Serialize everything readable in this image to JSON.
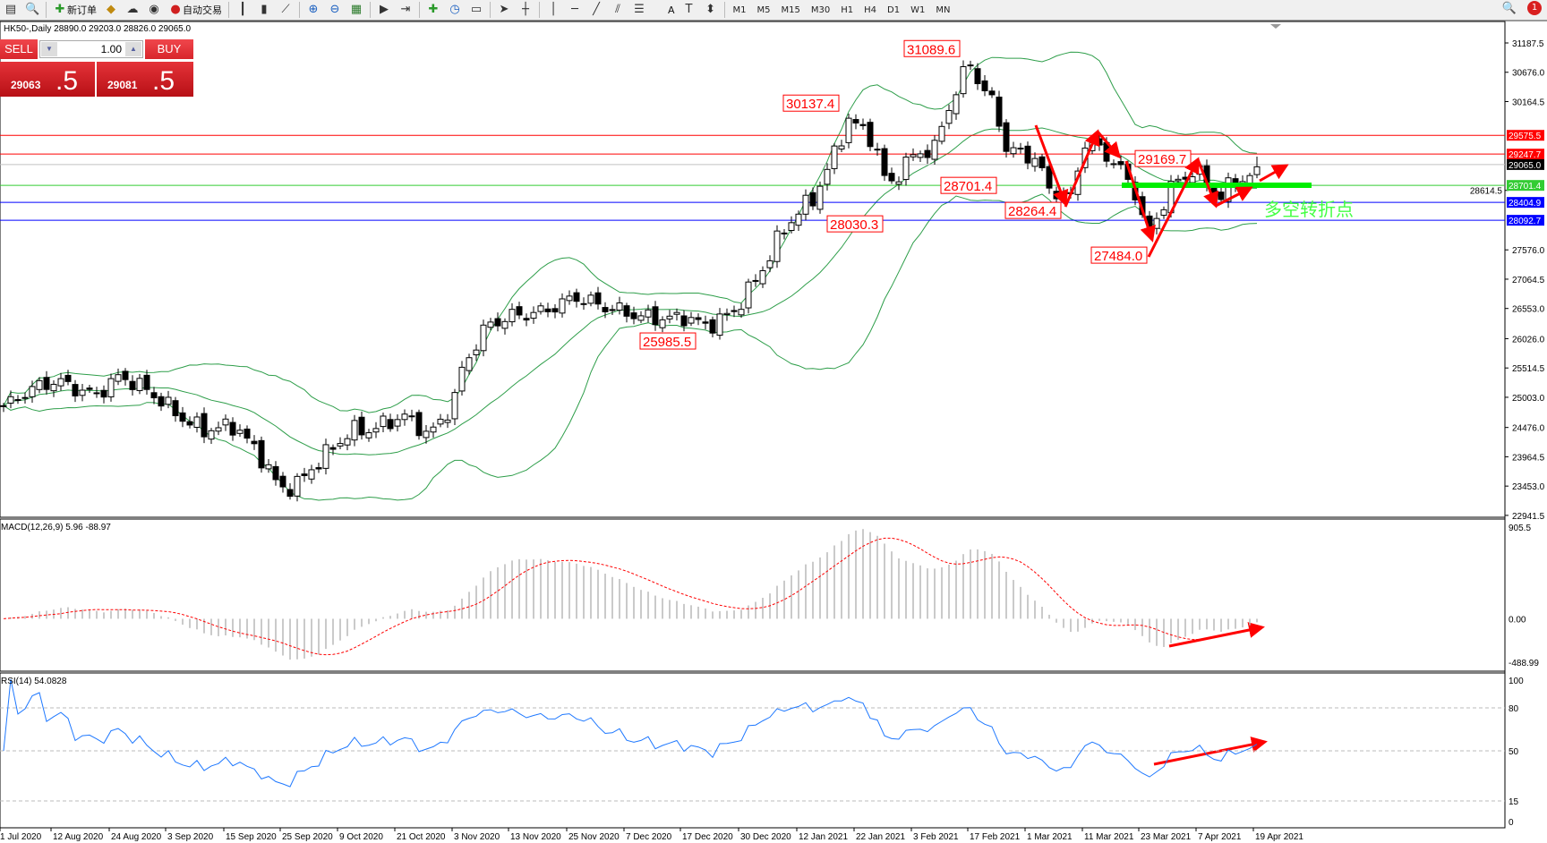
{
  "toolbar": {
    "items": [
      {
        "icon": "new-chart-icon",
        "label": ""
      },
      {
        "icon": "template-icon",
        "label": ""
      },
      {
        "icon": "new-order-icon",
        "label": "新订单"
      },
      {
        "icon": "expert-icon",
        "label": ""
      },
      {
        "icon": "history-icon",
        "label": ""
      },
      {
        "icon": "signal-icon",
        "label": ""
      },
      {
        "icon": "auto-trading-icon",
        "label": "自动交易"
      },
      {
        "icon": "bar-chart-icon",
        "label": ""
      },
      {
        "icon": "candlestick-icon",
        "label": ""
      },
      {
        "icon": "line-chart-icon",
        "label": ""
      },
      {
        "icon": "zoom-in-icon",
        "label": ""
      },
      {
        "icon": "zoom-out-icon",
        "label": ""
      },
      {
        "icon": "tile-windows-icon",
        "label": ""
      },
      {
        "icon": "autoscroll-icon",
        "label": ""
      },
      {
        "icon": "chart-shift-icon",
        "label": ""
      },
      {
        "icon": "indicators-icon",
        "label": ""
      },
      {
        "icon": "periods-icon",
        "label": ""
      },
      {
        "icon": "templates-icon",
        "label": ""
      },
      {
        "icon": "cursor-icon",
        "label": ""
      },
      {
        "icon": "crosshair-icon",
        "label": ""
      },
      {
        "icon": "vertical-line-icon",
        "label": ""
      },
      {
        "icon": "horizontal-line-icon",
        "label": ""
      },
      {
        "icon": "trendline-icon",
        "label": ""
      },
      {
        "icon": "equidistant-channel-icon",
        "label": ""
      },
      {
        "icon": "fibonacci-icon",
        "label": ""
      },
      {
        "icon": "text-icon",
        "label": "A"
      },
      {
        "icon": "text-label-icon",
        "label": ""
      },
      {
        "icon": "arrows-icon",
        "label": ""
      }
    ],
    "timeframes": [
      "M1",
      "M5",
      "M15",
      "M30",
      "H1",
      "H4",
      "D1",
      "W1",
      "MN"
    ],
    "notification_count": "1"
  },
  "chart_header": "HK50-,Daily  28890.0 29203.0 28826.0 29065.0",
  "trade_panel": {
    "sell_label": "SELL",
    "buy_label": "BUY",
    "volume": "1.00",
    "sell_price_main": "29063",
    "sell_price_frac": ".5",
    "buy_price_main": "29081",
    "buy_price_frac": ".5",
    "color": "#d8262c"
  },
  "chart_data": {
    "type": "candlestick",
    "symbol": "HK50-",
    "timeframe": "Daily",
    "ohlc_last": {
      "open": 28890.0,
      "high": 29203.0,
      "low": 28826.0,
      "close": 29065.0
    },
    "price_axis": {
      "min": 22941.5,
      "max": 31187.5,
      "ticks": [
        "31187.5",
        "30676.0",
        "30164.5",
        "28614.5",
        "27576.0",
        "27064.5",
        "26553.0",
        "26026.0",
        "25514.5",
        "25003.0",
        "24476.0",
        "23964.5",
        "23453.0",
        "22941.5"
      ]
    },
    "close_keypoints": [
      [
        "3 Aug 2020",
        24856
      ],
      [
        "7 Aug 2020",
        25115
      ],
      [
        "13 Aug 2020",
        25290
      ],
      [
        "21 Aug 2020",
        25030
      ],
      [
        "26 Aug 2020",
        25375
      ],
      [
        "31 Aug 2020",
        25115
      ],
      [
        "7 Sep 2020",
        24600
      ],
      [
        "11 Sep 2020",
        24425
      ],
      [
        "17 Sep 2020",
        24510
      ],
      [
        "22 Sep 2020",
        23910
      ],
      [
        "25 Sep 2020",
        23390
      ],
      [
        "29 Sep 2020",
        23480
      ],
      [
        "6 Oct 2020",
        24000
      ],
      [
        "12 Oct 2020",
        24425
      ],
      [
        "16 Oct 2020",
        24430
      ],
      [
        "23 Oct 2020",
        24684
      ],
      [
        "29 Oct 2020",
        24340
      ],
      [
        "3 Nov 2020",
        24856
      ],
      [
        "5 Nov 2020",
        25546
      ],
      [
        "9 Nov 2020",
        26236
      ],
      [
        "13 Nov 2020",
        26409
      ],
      [
        "20 Nov 2020",
        26495
      ],
      [
        "27 Nov 2020",
        26754
      ],
      [
        "3 Dec 2020",
        26581
      ],
      [
        "10 Dec 2020",
        26409
      ],
      [
        "15 Dec 2020",
        26370
      ],
      [
        "18 Dec 2020",
        26409
      ],
      [
        "23 Dec 2020",
        26236
      ],
      [
        "29 Dec 2020",
        26500
      ],
      [
        "4 Jan 2021",
        27185
      ],
      [
        "8 Jan 2021",
        27789
      ],
      [
        "12 Jan 2021",
        28220
      ],
      [
        "15 Jan 2021",
        28479
      ],
      [
        "19 Jan 2021",
        29341
      ],
      [
        "21 Jan 2021",
        29859
      ],
      [
        "26 Jan 2021",
        29514
      ],
      [
        "29 Jan 2021",
        28651
      ],
      [
        "1 Feb 2021",
        28996
      ],
      [
        "4 Feb 2021",
        29255
      ],
      [
        "9 Feb 2021",
        29341
      ],
      [
        "11 Feb 2021",
        29859
      ],
      [
        "16 Feb 2021",
        30635
      ],
      [
        "17 Feb 2021",
        30980
      ],
      [
        "19 Feb 2021",
        30549
      ],
      [
        "23 Feb 2021",
        30032
      ],
      [
        "25 Feb 2021",
        29341
      ],
      [
        "3 Mar 2021",
        29168
      ],
      [
        "5 Mar 2021",
        28651
      ],
      [
        "9 Mar 2021",
        28479
      ],
      [
        "11 Mar 2021",
        29341
      ],
      [
        "12 Mar 2021",
        29514
      ],
      [
        "17 Mar 2021",
        29168
      ],
      [
        "19 Mar 2021",
        28996
      ],
      [
        "23 Mar 2021",
        28479
      ],
      [
        "25 Mar 2021",
        27789
      ],
      [
        "29 Mar 2021",
        28306
      ],
      [
        "31 Mar 2021",
        28651
      ],
      [
        "7 Apr 2021",
        28996
      ],
      [
        "9 Apr 2021",
        28737
      ],
      [
        "12 Apr 2021",
        28479
      ],
      [
        "14 Apr 2021",
        28700
      ],
      [
        "19 Apr 2021",
        28910
      ],
      [
        "20 Apr 2021",
        29065
      ]
    ],
    "horizontal_lines": [
      {
        "price": "29575.5",
        "color": "#ff0000"
      },
      {
        "price": "29247.7",
        "color": "#ff0000"
      },
      {
        "price": "29065.0",
        "color": "#c0c0c0",
        "tag_color": "#000000"
      },
      {
        "price": "28701.4",
        "color": "#33cc33"
      },
      {
        "price": "28404.9",
        "color": "#0000ff"
      },
      {
        "price": "28092.7",
        "color": "#0000ff"
      }
    ],
    "annotations": [
      "31089.6",
      "30137.4",
      "28701.4",
      "28030.3",
      "28264.4",
      "29169.7",
      "27484.0",
      "25985.5"
    ],
    "pivot_text": "多空转折点",
    "bollinger": {
      "period": 20,
      "deviation": 2,
      "color": "#2e9e4a"
    },
    "macd": {
      "label": "MACD(12,26,9) 5.96 -88.97",
      "max": 905.5,
      "min": -488.99,
      "ticks": [
        "905.5",
        "0.00",
        "-488.99"
      ]
    },
    "rsi": {
      "label": "RSI(14) 54.0828",
      "ticks": [
        "100",
        "80",
        "50",
        "15",
        "0"
      ],
      "levels": [
        80,
        50,
        15
      ],
      "color": "#1e78ff"
    },
    "x_labels": [
      "1 Jul 2020",
      "12 Aug 2020",
      "24 Aug 2020",
      "3 Sep 2020",
      "15 Sep 2020",
      "25 Sep 2020",
      "9 Oct 2020",
      "21 Oct 2020",
      "3 Nov 2020",
      "13 Nov 2020",
      "25 Nov 2020",
      "7 Dec 2020",
      "17 Dec 2020",
      "30 Dec 2020",
      "12 Jan 2021",
      "22 Jan 2021",
      "3 Feb 2021",
      "17 Feb 2021",
      "1 Mar 2021",
      "11 Mar 2021",
      "23 Mar 2021",
      "7 Apr 2021",
      "19 Apr 2021"
    ]
  }
}
